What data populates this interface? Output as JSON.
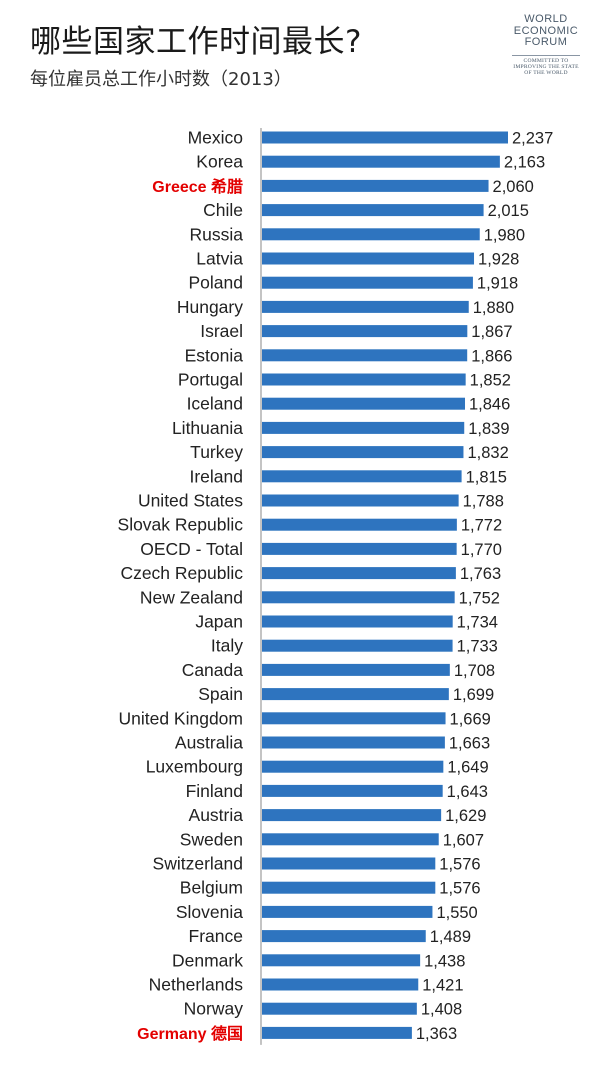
{
  "header": {
    "title": "哪些国家工作时间最长?",
    "subtitle": "每位雇员总工作小时数（2013）"
  },
  "logo": {
    "name": "WORLD\nECONOMIC\nFORUM",
    "tagline": "COMMITTED TO\nIMPROVING THE STATE\nOF THE WORLD"
  },
  "colors": {
    "bar": "#2e74bf",
    "highlight": "#e30000"
  },
  "chart_data": {
    "type": "bar",
    "orientation": "horizontal",
    "title": "哪些国家工作时间最长?",
    "subtitle": "每位雇员总工作小时数（2013）",
    "xlabel": "",
    "ylabel": "",
    "xlim": [
      0,
      2237
    ],
    "grid": false,
    "highlighted": [
      "Greece 希腊",
      "Germany 德国"
    ],
    "categories": [
      "Mexico",
      "Korea",
      "Greece 希腊",
      "Chile",
      "Russia",
      "Latvia",
      "Poland",
      "Hungary",
      "Israel",
      "Estonia",
      "Portugal",
      "Iceland",
      "Lithuania",
      "Turkey",
      "Ireland",
      "United States",
      "Slovak Republic",
      "OECD - Total",
      "Czech Republic",
      "New Zealand",
      "Japan",
      "Italy",
      "Canada",
      "Spain",
      "United Kingdom",
      "Australia",
      "Luxembourg",
      "Finland",
      "Austria",
      "Sweden",
      "Switzerland",
      "Belgium",
      "Slovenia",
      "France",
      "Denmark",
      "Netherlands",
      "Norway",
      "Germany 德国"
    ],
    "values": [
      2237,
      2163,
      2060,
      2015,
      1980,
      1928,
      1918,
      1880,
      1867,
      1866,
      1852,
      1846,
      1839,
      1832,
      1815,
      1788,
      1772,
      1770,
      1763,
      1752,
      1734,
      1733,
      1708,
      1699,
      1669,
      1663,
      1649,
      1643,
      1629,
      1607,
      1576,
      1576,
      1550,
      1489,
      1438,
      1421,
      1408,
      1363
    ],
    "value_labels": [
      "2,237",
      "2,163",
      "2,060",
      "2,015",
      "1,980",
      "1,928",
      "1,918",
      "1,880",
      "1,867",
      "1,866",
      "1,852",
      "1,846",
      "1,839",
      "1,832",
      "1,815",
      "1,788",
      "1,772",
      "1,770",
      "1,763",
      "1,752",
      "1,734",
      "1,733",
      "1,708",
      "1,699",
      "1,669",
      "1,663",
      "1,649",
      "1,643",
      "1,629",
      "1,607",
      "1,576",
      "1,576",
      "1,550",
      "1,489",
      "1,438",
      "1,421",
      "1,408",
      "1,363"
    ]
  }
}
